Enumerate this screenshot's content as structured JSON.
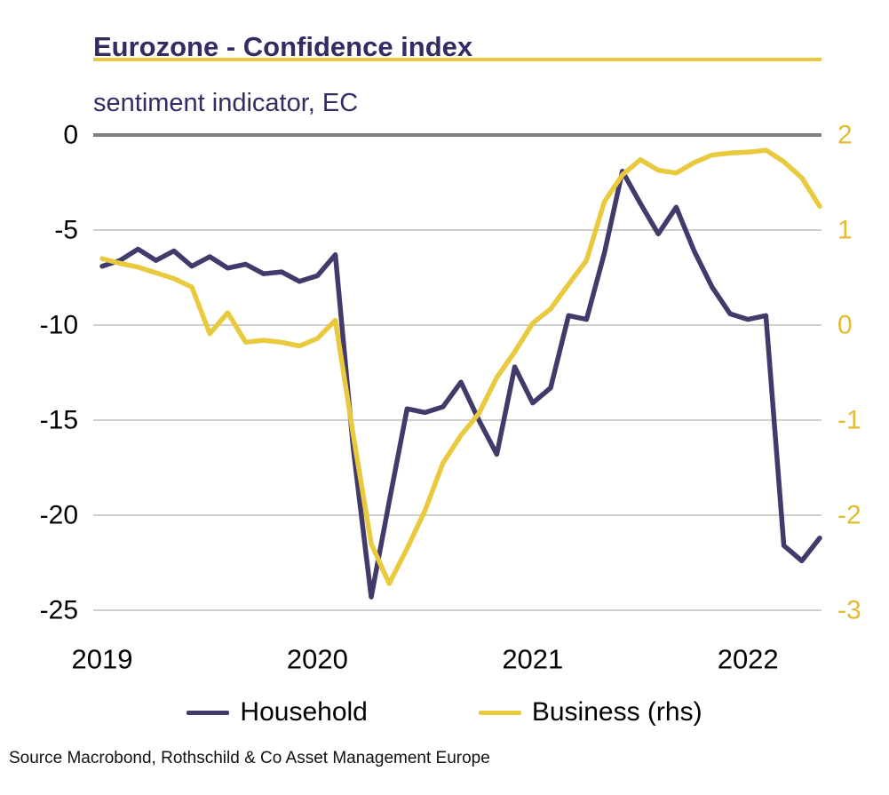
{
  "header": {
    "title": "Eurozone - Confidence index",
    "subtitle": "sentiment indicator, EC"
  },
  "legend": {
    "household_label": "Household",
    "business_label": "Business (rhs)"
  },
  "source_line": "Source Macrobond, Rothschild & Co Asset Management Europe",
  "colors": {
    "household_line": "#413a6b",
    "business_line": "#e9c93e",
    "title_text": "#332b62",
    "subtitle_text": "#332b62",
    "axis_text_left": "#000000",
    "axis_text_right": "#e3bd2d",
    "x_axis_text": "#000000",
    "gridline": "#bfbfbf",
    "zero_line": "#808080",
    "title_rule": "#e9c93e"
  },
  "chart_data": {
    "type": "line",
    "title": "Eurozone - Confidence index",
    "subtitle": "sentiment indicator, EC",
    "grid": "horizontal-only",
    "legend_position": "bottom-center",
    "x": [
      "2019-01",
      "2019-02",
      "2019-03",
      "2019-04",
      "2019-05",
      "2019-06",
      "2019-07",
      "2019-08",
      "2019-09",
      "2019-10",
      "2019-11",
      "2019-12",
      "2020-01",
      "2020-02",
      "2020-03",
      "2020-04",
      "2020-05",
      "2020-06",
      "2020-07",
      "2020-08",
      "2020-09",
      "2020-10",
      "2020-11",
      "2020-12",
      "2021-01",
      "2021-02",
      "2021-03",
      "2021-04",
      "2021-05",
      "2021-06",
      "2021-07",
      "2021-08",
      "2021-09",
      "2021-10",
      "2021-11",
      "2021-12",
      "2022-01",
      "2022-02",
      "2022-03",
      "2022-04",
      "2022-05"
    ],
    "series": [
      {
        "name": "Household",
        "axis": "left",
        "values": [
          -6.9,
          -6.6,
          -6.0,
          -6.6,
          -6.1,
          -6.9,
          -6.4,
          -7.0,
          -6.8,
          -7.3,
          -7.2,
          -7.7,
          -7.4,
          -6.3,
          -16.5,
          -24.3,
          -19.3,
          -14.4,
          -14.6,
          -14.3,
          -13.0,
          -15.0,
          -16.8,
          -12.2,
          -14.1,
          -13.3,
          -9.5,
          -9.7,
          -6.2,
          -1.9,
          -3.6,
          -5.2,
          -3.8,
          -6.1,
          -8.0,
          -9.4,
          -9.7,
          -9.5,
          -21.6,
          -22.4,
          -21.2
        ]
      },
      {
        "name": "Business (rhs)",
        "axis": "right",
        "values": [
          0.7,
          0.65,
          0.61,
          0.55,
          0.49,
          0.4,
          -0.09,
          0.13,
          -0.18,
          -0.16,
          -0.18,
          -0.22,
          -0.14,
          0.05,
          -1.16,
          -2.3,
          -2.72,
          -2.35,
          -1.95,
          -1.45,
          -1.16,
          -0.93,
          -0.55,
          -0.28,
          0.02,
          0.17,
          0.43,
          0.68,
          1.3,
          1.58,
          1.74,
          1.63,
          1.6,
          1.71,
          1.79,
          1.81,
          1.82,
          1.84,
          1.72,
          1.55,
          1.25
        ]
      }
    ],
    "left_axis": {
      "ticks": [
        0,
        -5,
        -10,
        -15,
        -20,
        -25
      ],
      "ylim": [
        -25,
        0
      ]
    },
    "right_axis": {
      "ticks": [
        2,
        1,
        0,
        -1,
        -2,
        -3
      ],
      "ylim": [
        -3,
        2
      ]
    },
    "x_ticks": {
      "labels": [
        "2019",
        "2020",
        "2021",
        "2022"
      ],
      "month_index": [
        0,
        12,
        24,
        36
      ]
    }
  }
}
